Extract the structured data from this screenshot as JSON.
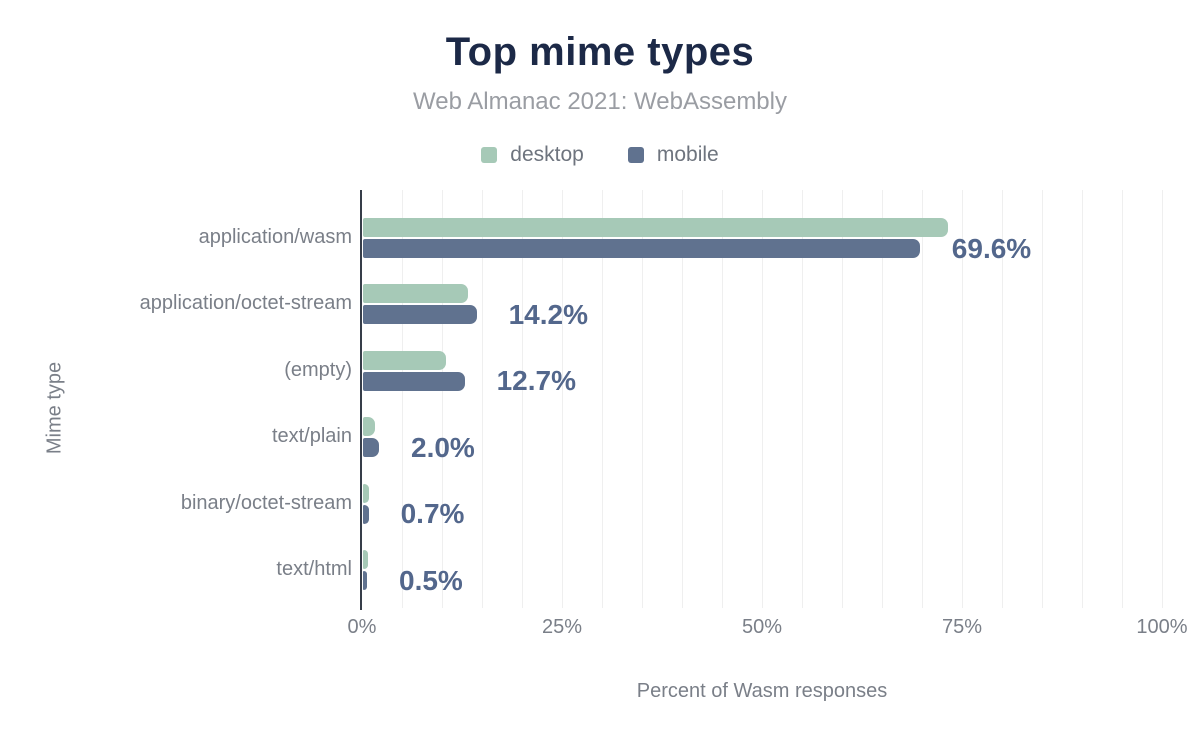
{
  "chart_data": {
    "type": "bar",
    "orientation": "horizontal",
    "title": "Top mime types",
    "subtitle": "Web Almanac 2021: WebAssembly",
    "categories": [
      "application/wasm",
      "application/octet-stream",
      "(empty)",
      "text/plain",
      "binary/octet-stream",
      "text/html"
    ],
    "series": [
      {
        "name": "desktop",
        "color": "#a6c9b7",
        "values": [
          73.1,
          13.1,
          10.4,
          1.5,
          0.8,
          0.6
        ]
      },
      {
        "name": "mobile",
        "color": "#60728f",
        "values": [
          69.6,
          14.2,
          12.7,
          2.0,
          0.7,
          0.5
        ]
      }
    ],
    "data_labels": [
      "69.6%",
      "14.2%",
      "12.7%",
      "2.0%",
      "0.7%",
      "0.5%"
    ],
    "xlabel": "Percent of Wasm responses",
    "ylabel": "Mime type",
    "xlim": [
      0,
      100
    ],
    "x_ticks": [
      "0%",
      "25%",
      "50%",
      "75%",
      "100%"
    ],
    "x_tick_values": [
      0,
      25,
      50,
      75,
      100
    ],
    "grid_step_pct": 5,
    "grid": true,
    "legend_position": "top"
  },
  "colors": {
    "title": "#1c2947",
    "subtitle": "#9a9da3",
    "axis_text": "#7a7f88",
    "value_label": "#53678c",
    "axis_line": "#363d49",
    "gridline": "#efefef",
    "background": "#ffffff",
    "desktop": "#a6c9b7",
    "mobile": "#60728f"
  }
}
